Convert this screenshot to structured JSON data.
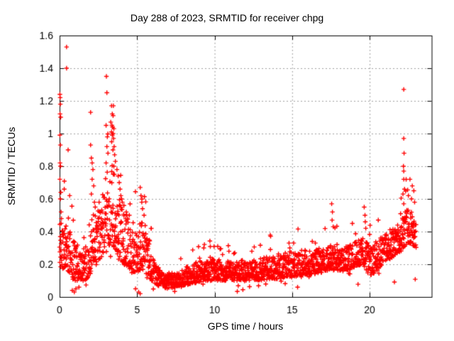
{
  "page": {
    "background": "#ffffff"
  },
  "chart_data": {
    "type": "scatter",
    "title": "Day 288 of 2023, SRMTID for receiver chpg",
    "xlabel": "GPS time / hours",
    "ylabel": "SRMTID / TECUs",
    "xlim": [
      0,
      24
    ],
    "ylim": [
      0,
      1.6
    ],
    "xticks": [
      0,
      5,
      10,
      15,
      20
    ],
    "yticks": [
      0,
      0.2,
      0.4,
      0.6,
      0.8,
      1,
      1.2,
      1.4,
      1.6
    ],
    "grid": {
      "visible": true,
      "style": "dotted",
      "color": "#a0a0a0"
    },
    "marker": {
      "glyph": "+",
      "color": "#ff0000"
    },
    "axis_color": "#000000",
    "text_color": "#000000",
    "legend": null,
    "series": {
      "name": "SRMTID",
      "sampling": {
        "start_hour": 0,
        "end_hour": 23.0,
        "step_hours": 0.011111,
        "seed": 2023288
      },
      "band_profile_hourly": [
        [
          0.0,
          0.15,
          0.45
        ],
        [
          0.3,
          0.18,
          0.46
        ],
        [
          0.6,
          0.15,
          0.42
        ],
        [
          0.9,
          0.1,
          0.35
        ],
        [
          1.2,
          0.1,
          0.3
        ],
        [
          1.6,
          0.1,
          0.3
        ],
        [
          1.9,
          0.12,
          0.35
        ],
        [
          2.1,
          0.18,
          0.5
        ],
        [
          2.4,
          0.2,
          0.52
        ],
        [
          2.7,
          0.22,
          0.55
        ],
        [
          3.0,
          0.28,
          0.75
        ],
        [
          3.3,
          0.32,
          0.85
        ],
        [
          3.5,
          0.3,
          0.8
        ],
        [
          3.8,
          0.25,
          0.62
        ],
        [
          4.1,
          0.2,
          0.55
        ],
        [
          4.4,
          0.18,
          0.5
        ],
        [
          4.7,
          0.14,
          0.4
        ],
        [
          5.0,
          0.15,
          0.42
        ],
        [
          5.3,
          0.17,
          0.48
        ],
        [
          5.6,
          0.12,
          0.38
        ],
        [
          5.9,
          0.1,
          0.3
        ],
        [
          6.2,
          0.08,
          0.22
        ],
        [
          6.5,
          0.06,
          0.16
        ],
        [
          7.0,
          0.05,
          0.14
        ],
        [
          7.5,
          0.06,
          0.15
        ],
        [
          8.0,
          0.07,
          0.18
        ],
        [
          8.5,
          0.08,
          0.2
        ],
        [
          9.0,
          0.09,
          0.22
        ],
        [
          9.5,
          0.1,
          0.22
        ],
        [
          10.0,
          0.1,
          0.24
        ],
        [
          10.5,
          0.1,
          0.22
        ],
        [
          11.0,
          0.1,
          0.22
        ],
        [
          11.5,
          0.1,
          0.23
        ],
        [
          12.0,
          0.1,
          0.22
        ],
        [
          12.5,
          0.1,
          0.23
        ],
        [
          13.0,
          0.1,
          0.24
        ],
        [
          13.5,
          0.11,
          0.25
        ],
        [
          14.0,
          0.11,
          0.26
        ],
        [
          14.5,
          0.12,
          0.28
        ],
        [
          15.0,
          0.12,
          0.28
        ],
        [
          15.5,
          0.13,
          0.28
        ],
        [
          16.0,
          0.14,
          0.3
        ],
        [
          16.5,
          0.14,
          0.29
        ],
        [
          17.0,
          0.15,
          0.3
        ],
        [
          17.5,
          0.16,
          0.33
        ],
        [
          18.0,
          0.15,
          0.3
        ],
        [
          18.5,
          0.16,
          0.31
        ],
        [
          19.0,
          0.18,
          0.33
        ],
        [
          19.5,
          0.2,
          0.37
        ],
        [
          20.0,
          0.13,
          0.32
        ],
        [
          20.4,
          0.15,
          0.34
        ],
        [
          20.8,
          0.2,
          0.37
        ],
        [
          21.2,
          0.22,
          0.39
        ],
        [
          21.6,
          0.25,
          0.42
        ],
        [
          22.0,
          0.28,
          0.47
        ],
        [
          22.3,
          0.3,
          0.52
        ],
        [
          22.6,
          0.33,
          0.56
        ],
        [
          23.0,
          0.3,
          0.5
        ]
      ],
      "notable_points": [
        [
          0.02,
          1.24
        ],
        [
          0.04,
          1.22
        ],
        [
          0.05,
          1.18
        ],
        [
          0.03,
          1.12
        ],
        [
          0.07,
          1.1
        ],
        [
          0.02,
          0.99
        ],
        [
          0.05,
          0.93
        ],
        [
          0.03,
          0.82
        ],
        [
          0.06,
          0.8
        ],
        [
          0.02,
          0.72
        ],
        [
          0.08,
          0.64
        ],
        [
          0.05,
          0.6
        ],
        [
          0.1,
          0.52
        ],
        [
          0.12,
          0.48
        ],
        [
          0.45,
          1.53
        ],
        [
          0.45,
          1.4
        ],
        [
          0.3,
          0.66
        ],
        [
          0.55,
          0.9
        ],
        [
          0.65,
          0.62
        ],
        [
          0.82,
          0.04
        ],
        [
          0.95,
          0.03
        ],
        [
          1.05,
          0.05
        ],
        [
          1.25,
          0.06
        ],
        [
          2.0,
          1.13
        ],
        [
          2.0,
          0.93
        ],
        [
          2.05,
          0.85
        ],
        [
          2.1,
          0.82
        ],
        [
          2.15,
          0.78
        ],
        [
          2.1,
          0.72
        ],
        [
          2.2,
          0.68
        ],
        [
          2.05,
          0.63
        ],
        [
          2.25,
          0.58
        ],
        [
          2.3,
          0.55
        ],
        [
          2.55,
          0.58
        ],
        [
          2.75,
          0.52
        ],
        [
          3.02,
          1.35
        ],
        [
          3.05,
          1.25
        ],
        [
          3.0,
          1.05
        ],
        [
          3.08,
          0.98
        ],
        [
          3.05,
          0.92
        ],
        [
          3.12,
          0.88
        ],
        [
          3.0,
          0.82
        ],
        [
          3.35,
          1.17
        ],
        [
          3.47,
          1.17
        ],
        [
          3.4,
          1.12
        ],
        [
          3.45,
          1.11
        ],
        [
          3.3,
          1.07
        ],
        [
          3.38,
          1.05
        ],
        [
          3.42,
          1.04
        ],
        [
          3.5,
          1.03
        ],
        [
          3.35,
          1.01
        ],
        [
          3.45,
          1.0
        ],
        [
          3.4,
          0.99
        ],
        [
          3.48,
          0.97
        ],
        [
          3.36,
          0.95
        ],
        [
          3.52,
          0.92
        ],
        [
          3.44,
          0.9
        ],
        [
          3.55,
          0.87
        ],
        [
          3.6,
          0.83
        ],
        [
          3.5,
          0.8
        ],
        [
          3.7,
          0.78
        ],
        [
          3.78,
          0.74
        ],
        [
          3.85,
          0.7
        ],
        [
          3.9,
          0.66
        ],
        [
          3.95,
          0.62
        ],
        [
          4.0,
          0.6
        ],
        [
          4.05,
          0.58
        ],
        [
          4.15,
          0.56
        ],
        [
          4.3,
          0.52
        ],
        [
          4.5,
          0.5
        ],
        [
          4.9,
          0.05
        ],
        [
          5.1,
          0.03
        ],
        [
          5.2,
          0.02
        ],
        [
          5.2,
          0.67
        ],
        [
          5.25,
          0.62
        ],
        [
          5.3,
          0.58
        ],
        [
          5.35,
          0.54
        ],
        [
          5.45,
          0.5
        ],
        [
          5.9,
          0.42
        ],
        [
          9.3,
          0.3
        ],
        [
          10.2,
          0.31
        ],
        [
          11.3,
          0.27
        ],
        [
          12.4,
          0.28
        ],
        [
          13.6,
          0.29
        ],
        [
          14.8,
          0.33
        ],
        [
          14.85,
          0.3
        ],
        [
          15.1,
          0.33
        ],
        [
          16.3,
          0.34
        ],
        [
          16.5,
          0.33
        ],
        [
          17.55,
          0.57
        ],
        [
          17.6,
          0.52
        ],
        [
          17.58,
          0.47
        ],
        [
          17.65,
          0.43
        ],
        [
          19.65,
          0.55
        ],
        [
          19.7,
          0.5
        ],
        [
          19.72,
          0.46
        ],
        [
          19.75,
          0.42
        ],
        [
          22.2,
          1.27
        ],
        [
          22.2,
          0.97
        ],
        [
          22.22,
          0.88
        ],
        [
          22.18,
          0.8
        ],
        [
          22.2,
          0.77
        ],
        [
          22.25,
          0.66
        ],
        [
          22.15,
          0.63
        ],
        [
          22.2,
          0.57
        ],
        [
          22.3,
          0.52
        ],
        [
          22.2,
          0.72
        ],
        [
          22.6,
          0.72
        ],
        [
          22.75,
          0.68
        ],
        [
          22.85,
          0.65
        ],
        [
          22.5,
          0.62
        ],
        [
          22.7,
          0.6
        ],
        [
          22.9,
          0.58
        ]
      ]
    }
  }
}
